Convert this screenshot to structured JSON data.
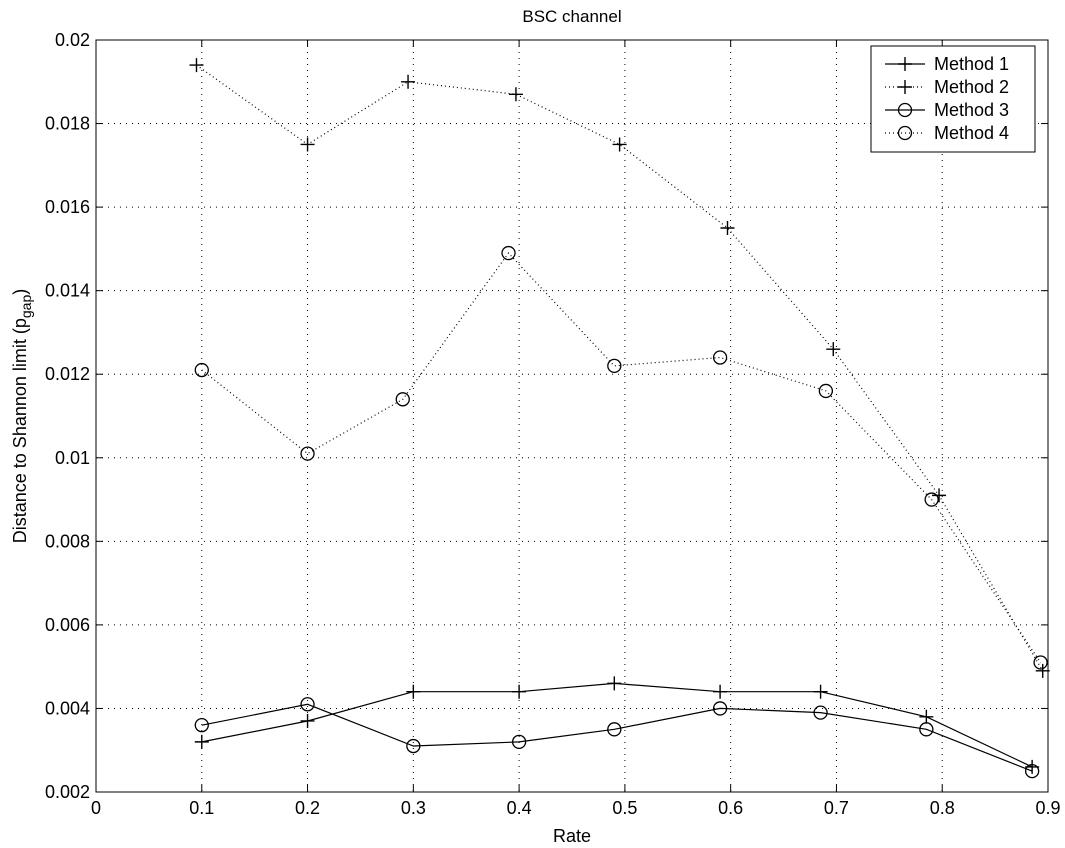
{
  "chart_data": {
    "type": "line",
    "title": "BSC channel",
    "xlabel": "Rate",
    "ylabel": "Distance to Shannon limit (p",
    "ylabel_sub": "gap",
    "ylabel_tail": ")",
    "xlim": [
      0,
      0.9
    ],
    "ylim": [
      0.002,
      0.02
    ],
    "xticks": [
      "0",
      "0.1",
      "0.2",
      "0.3",
      "0.4",
      "0.5",
      "0.6",
      "0.7",
      "0.8",
      "0.9"
    ],
    "yticks": [
      "0.002",
      "0.004",
      "0.006",
      "0.008",
      "0.01",
      "0.012",
      "0.014",
      "0.016",
      "0.018",
      "0.02"
    ],
    "grid": true,
    "legend_position": "top-right",
    "series": [
      {
        "name": "Method 1",
        "line": "solid",
        "marker": "plus",
        "x": [
          0.1,
          0.2,
          0.3,
          0.4,
          0.49,
          0.59,
          0.685,
          0.785,
          0.885
        ],
        "y": [
          0.0032,
          0.0037,
          0.0044,
          0.0044,
          0.0046,
          0.0044,
          0.0044,
          0.0038,
          0.0026
        ]
      },
      {
        "name": "Method 2",
        "line": "dotted",
        "marker": "plus",
        "x": [
          0.095,
          0.2,
          0.295,
          0.397,
          0.495,
          0.597,
          0.697,
          0.797,
          0.895
        ],
        "y": [
          0.0194,
          0.0175,
          0.019,
          0.0187,
          0.0175,
          0.0155,
          0.0126,
          0.0091,
          0.0049
        ]
      },
      {
        "name": "Method 3",
        "line": "solid",
        "marker": "circle",
        "x": [
          0.1,
          0.2,
          0.3,
          0.4,
          0.49,
          0.59,
          0.685,
          0.785,
          0.885
        ],
        "y": [
          0.0036,
          0.0041,
          0.0031,
          0.0032,
          0.0035,
          0.004,
          0.0039,
          0.0035,
          0.0025
        ]
      },
      {
        "name": "Method 4",
        "line": "dotted",
        "marker": "circle",
        "x": [
          0.1,
          0.2,
          0.29,
          0.39,
          0.49,
          0.59,
          0.69,
          0.79,
          0.893
        ],
        "y": [
          0.0121,
          0.0101,
          0.0114,
          0.0149,
          0.0122,
          0.0124,
          0.0116,
          0.009,
          0.0051
        ]
      }
    ]
  }
}
